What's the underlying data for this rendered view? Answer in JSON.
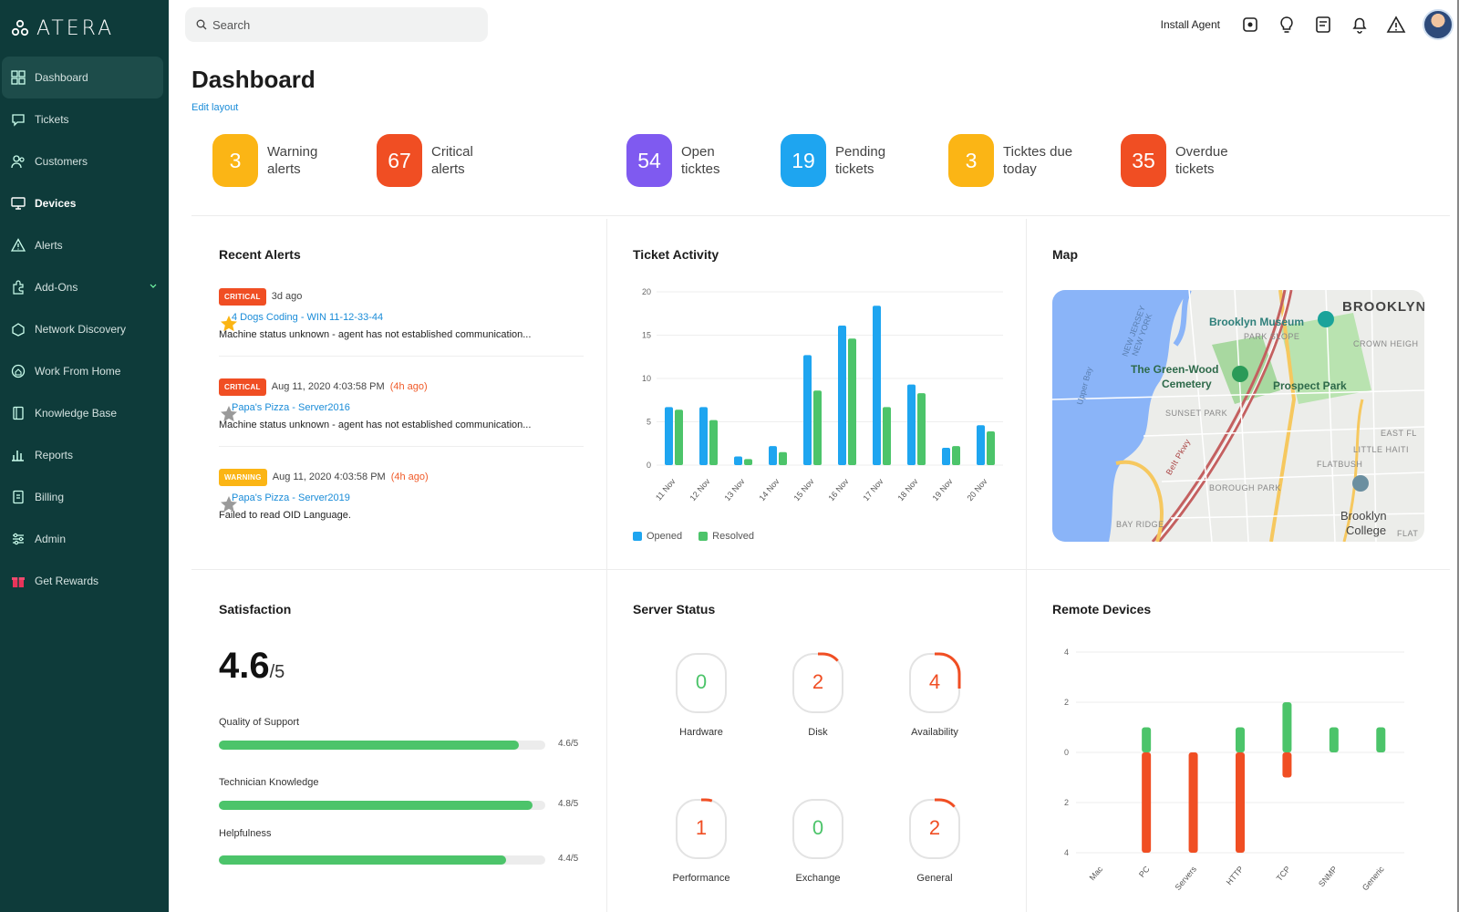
{
  "app": {
    "logo_text": "ATERA"
  },
  "sidebar": {
    "items": [
      {
        "label": "Dashboard",
        "icon": "dashboard-icon"
      },
      {
        "label": "Tickets",
        "icon": "ticket-icon"
      },
      {
        "label": "Customers",
        "icon": "customers-icon"
      },
      {
        "label": "Devices",
        "icon": "devices-icon"
      },
      {
        "label": "Alerts",
        "icon": "alert-icon"
      },
      {
        "label": "Add-Ons",
        "icon": "addons-icon"
      },
      {
        "label": "Network Discovery",
        "icon": "network-icon"
      },
      {
        "label": "Work From Home",
        "icon": "home-icon"
      },
      {
        "label": "Knowledge Base",
        "icon": "book-icon"
      },
      {
        "label": "Reports",
        "icon": "reports-icon"
      },
      {
        "label": "Billing",
        "icon": "billing-icon"
      },
      {
        "label": "Admin",
        "icon": "admin-icon"
      },
      {
        "label": "Get Rewards",
        "icon": "gift-icon"
      }
    ]
  },
  "header": {
    "search_placeholder": "Search",
    "install_agent": "Install Agent"
  },
  "main": {
    "title": "Dashboard",
    "edit_layout": "Edit layout",
    "stats": [
      {
        "value": "3",
        "line1": "Warning",
        "line2": "alerts",
        "color": "#fbb515"
      },
      {
        "value": "67",
        "line1": "Critical",
        "line2": "alerts",
        "color": "#f04e23"
      },
      {
        "value": "54",
        "line1": "Open",
        "line2": "ticktes",
        "color": "#7f5af0"
      },
      {
        "value": "19",
        "line1": "Pending",
        "line2": "tickets",
        "color": "#1ea5f0"
      },
      {
        "value": "3",
        "line1": "Ticktes due",
        "line2": "today",
        "color": "#fbb515"
      },
      {
        "value": "35",
        "line1": "Overdue",
        "line2": "tickets",
        "color": "#f04e23"
      }
    ]
  },
  "recent_alerts": {
    "title": "Recent Alerts",
    "items": [
      {
        "tag": "CRITICAL",
        "tag_color": "#f04e23",
        "time": "3d ago",
        "ago": "",
        "link": "4 Dogs Coding - WIN 11-12-33-44",
        "message": "Machine status unknown - agent has not established communication...",
        "starred": true
      },
      {
        "tag": "CRITICAL",
        "tag_color": "#f04e23",
        "time": "Aug 11, 2020 4:03:58 PM",
        "ago": "(4h ago)",
        "link": "Papa's Pizza - Server2016",
        "message": "Machine status unknown - agent has not established communication...",
        "starred": false
      },
      {
        "tag": "WARNING",
        "tag_color": "#fbb515",
        "time": "Aug 11, 2020 4:03:58 PM",
        "ago": "(4h ago)",
        "link": "Papa's Pizza - Server2019",
        "message": "Failed to read OID Language.",
        "starred": false
      }
    ]
  },
  "ticket_activity": {
    "title": "Ticket Activity",
    "legend": {
      "opened": "Opened",
      "resolved": "Resolved"
    },
    "colors": {
      "opened": "#1ea5f0",
      "resolved": "#4cc46a"
    }
  },
  "map": {
    "title": "Map",
    "labels": {
      "brooklyn": "BROOKLYN",
      "museum": "Brooklyn Museum",
      "park_slope": "PARK SLOPE",
      "crown_heights": "CROWN HEIGH",
      "green_wood_1": "The Green-Wood",
      "green_wood_2": "Cemetery",
      "prospect_park": "Prospect Park",
      "sunset_park": "SUNSET PARK",
      "east_fl": "EAST FL",
      "little_haiti": "LITTLE HAITI",
      "flatbush": "FLATBUSH",
      "borough_park": "BOROUGH PARK",
      "college_1": "Brooklyn",
      "college_2": "College",
      "bay_ridge": "BAY RIDGE",
      "flat": "FLAT",
      "upper_bay": "Upper Bay",
      "new_jersey": "NEW JERSEY",
      "new_york": "NEW YORK",
      "parkway": "Belt Pkwy"
    }
  },
  "satisfaction": {
    "title": "Satisfaction",
    "score": "4.6",
    "score_den": "/5",
    "rows": [
      {
        "label": "Quality of Support",
        "value": "4.6/5",
        "fraction": 0.92
      },
      {
        "label": "Technician Knowledge",
        "value": "4.8/5",
        "fraction": 0.96
      },
      {
        "label": "Helpfulness",
        "value": "4.4/5",
        "fraction": 0.88
      }
    ]
  },
  "server_status": {
    "title": "Server Status",
    "items": [
      {
        "value": "0",
        "label": "Hardware",
        "color": "#4cc46a",
        "arc": 0
      },
      {
        "value": "2",
        "label": "Disk",
        "color": "#f04e23",
        "arc": 0.12
      },
      {
        "value": "4",
        "label": "Availability",
        "color": "#f04e23",
        "arc": 0.28
      },
      {
        "value": "1",
        "label": "Performance",
        "color": "#f04e23",
        "arc": 0.06
      },
      {
        "value": "0",
        "label": "Exchange",
        "color": "#4cc46a",
        "arc": 0
      },
      {
        "value": "2",
        "label": "General",
        "color": "#f04e23",
        "arc": 0.12
      }
    ]
  },
  "remote_devices": {
    "title": "Remote Devices"
  },
  "chart_data": [
    {
      "type": "bar",
      "title": "Ticket Activity",
      "categories": [
        "11 Nov",
        "12 Nov",
        "13 Nov",
        "14 Nov",
        "15 Nov",
        "16 Nov",
        "17 Nov",
        "18 Nov",
        "19 Nov",
        "20 Nov"
      ],
      "series": [
        {
          "name": "Opened",
          "values": [
            6.7,
            6.7,
            1,
            2.2,
            12.7,
            16.1,
            18.4,
            9.3,
            2,
            4.6
          ]
        },
        {
          "name": "Resolved",
          "values": [
            6.4,
            5.2,
            0.7,
            1.5,
            8.6,
            14.6,
            6.7,
            8.3,
            2.2,
            3.9
          ]
        }
      ],
      "yticks": [
        "0",
        "5",
        "10",
        "15",
        "20"
      ],
      "ylim": [
        0,
        20
      ],
      "legend": "bottom-left"
    },
    {
      "type": "bar",
      "title": "Remote Devices",
      "categories": [
        "Mac",
        "PC",
        "Servers",
        "HTTP",
        "TCP",
        "SNMP",
        "Generic"
      ],
      "series": [
        {
          "values": [
            0,
            1,
            0,
            1,
            2,
            1,
            1
          ]
        },
        {
          "values": [
            0,
            -4,
            -4,
            -4,
            -1,
            0,
            0
          ]
        }
      ],
      "yticks": [
        "4",
        "2",
        "0",
        "2",
        "4"
      ],
      "ylim": [
        -4,
        4
      ]
    }
  ]
}
